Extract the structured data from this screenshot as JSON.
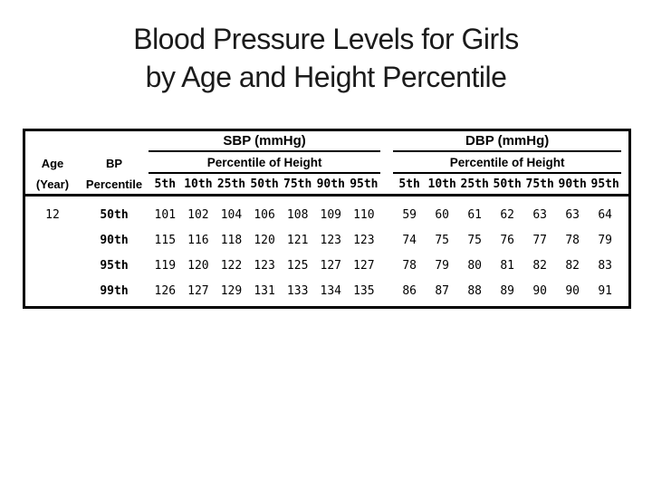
{
  "slide": {
    "title_lines": [
      "Blood Pressure Levels for Girls",
      "by Age and Height Percentile"
    ]
  },
  "table": {
    "sections": {
      "sbp": "SBP (mmHg)",
      "dbp": "DBP (mmHg)"
    },
    "percentile_of_height": "Percentile of Height",
    "age": {
      "label": "Age",
      "sublabel": "(Year)"
    },
    "bp": {
      "label": "BP",
      "sublabel": "Percentile"
    },
    "height_percentiles": [
      "5th",
      "10th",
      "25th",
      "50th",
      "75th",
      "90th",
      "95th"
    ],
    "rows": [
      {
        "age": "12",
        "bp": "50th",
        "sbp": [
          "101",
          "102",
          "104",
          "106",
          "108",
          "109",
          "110"
        ],
        "dbp": [
          "59",
          "60",
          "61",
          "62",
          "63",
          "63",
          "64"
        ]
      },
      {
        "age": "",
        "bp": "90th",
        "sbp": [
          "115",
          "116",
          "118",
          "120",
          "121",
          "123",
          "123"
        ],
        "dbp": [
          "74",
          "75",
          "75",
          "76",
          "77",
          "78",
          "79"
        ]
      },
      {
        "age": "",
        "bp": "95th",
        "sbp": [
          "119",
          "120",
          "122",
          "123",
          "125",
          "127",
          "127"
        ],
        "dbp": [
          "78",
          "79",
          "80",
          "81",
          "82",
          "82",
          "83"
        ]
      },
      {
        "age": "",
        "bp": "99th",
        "sbp": [
          "126",
          "127",
          "129",
          "131",
          "133",
          "134",
          "135"
        ],
        "dbp": [
          "86",
          "87",
          "88",
          "89",
          "90",
          "90",
          "91"
        ]
      }
    ]
  },
  "colors": {
    "background": "#ffffff",
    "table_border": "#000000",
    "text": "#000000",
    "title_text": "#1b1b1b"
  }
}
